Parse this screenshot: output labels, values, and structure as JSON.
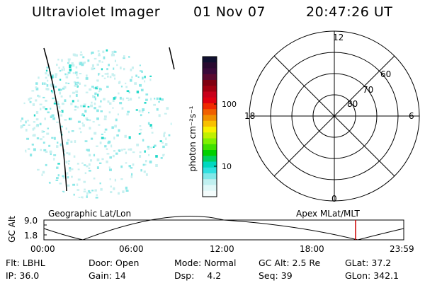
{
  "header": {
    "instrument": "Ultraviolet Imager",
    "date": "01 Nov 07",
    "time": "20:47:26 UT"
  },
  "colorbar": {
    "unit_label": "photon cm⁻²s⁻¹",
    "tick_labels": [
      "100",
      "10"
    ],
    "tick_values": [
      100,
      10
    ],
    "colors": [
      "#101030",
      "#2a0a30",
      "#3a0a3a",
      "#5a0a30",
      "#800010",
      "#a00010",
      "#c8001a",
      "#e00010",
      "#f02a00",
      "#f06000",
      "#f09000",
      "#f8c000",
      "#f8f000",
      "#c0f000",
      "#80f000",
      "#40e000",
      "#00d000",
      "#00d060",
      "#00d8c0",
      "#30e0e0",
      "#80e8e8",
      "#c0f0f0",
      "#e0f8f8",
      "#f4fcfc"
    ]
  },
  "polar_plot": {
    "mlt_labels": {
      "top": "12",
      "bottom": "0",
      "left": "18",
      "right": "6"
    },
    "lat_labels": [
      "60",
      "70",
      "80"
    ]
  },
  "timeline": {
    "y_axis_label": "GC Alt",
    "y_ticks": [
      "9.0",
      "1.8"
    ],
    "left_title": "Geographic Lat/Lon",
    "right_title": "Apex MLat/MLT",
    "x_ticks": [
      "00:00",
      "06:00",
      "12:00",
      "18:00",
      "23:59"
    ],
    "marker_color": "#cc0000"
  },
  "info": {
    "row1": [
      {
        "label": "Flt:",
        "value": "LBHL"
      },
      {
        "label": "Door:",
        "value": "Open"
      },
      {
        "label": "Mode:",
        "value": "Normal"
      },
      {
        "label": "GC Alt:",
        "value": "2.5 Re"
      },
      {
        "label": "GLat:",
        "value": "37.2"
      }
    ],
    "row2": [
      {
        "label": "IP:",
        "value": "36.0"
      },
      {
        "label": "Gain:",
        "value": "14"
      },
      {
        "label": "Dsp:",
        "value": "4.2"
      },
      {
        "label": "Seq:",
        "value": "39"
      },
      {
        "label": "GLon:",
        "value": "342.1"
      }
    ]
  }
}
